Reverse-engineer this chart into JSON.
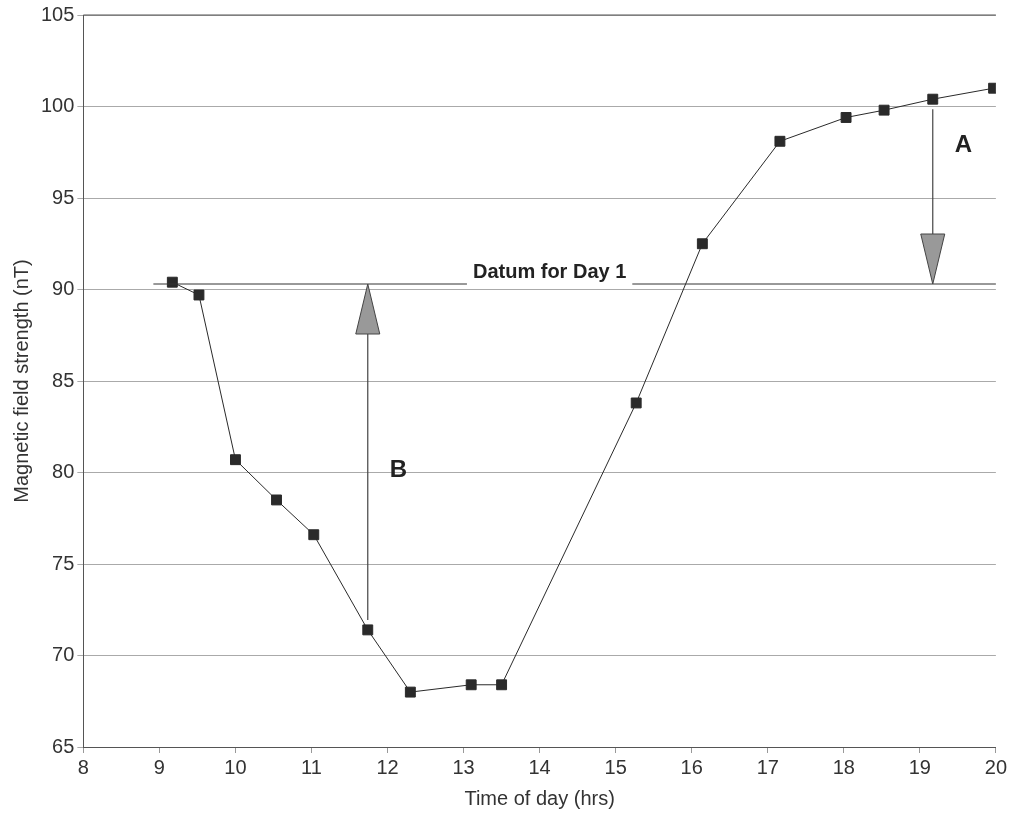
{
  "chart_data": {
    "type": "line",
    "xlabel": "Time of day (hrs)",
    "ylabel": "Magnetic field strength (nT)",
    "x": [
      9.17,
      9.52,
      10.0,
      10.54,
      11.03,
      11.74,
      12.3,
      13.1,
      13.5,
      15.27,
      16.14,
      17.16,
      18.03,
      18.53,
      19.17,
      19.97
    ],
    "series": [
      {
        "color": "#2a2a2a",
        "values": [
          90.4,
          89.7,
          80.7,
          78.5,
          76.6,
          71.4,
          68.0,
          68.4,
          68.4,
          83.8,
          92.5,
          98.1,
          99.4,
          99.8,
          100.4,
          101.0
        ]
      }
    ],
    "xlim": [
      8,
      20
    ],
    "xticks": [
      8,
      9,
      10,
      11,
      12,
      13,
      14,
      15,
      16,
      17,
      18,
      19,
      20
    ],
    "ylim": [
      65,
      105
    ],
    "yticks": [
      65,
      70,
      75,
      80,
      85,
      90,
      95,
      100,
      105
    ],
    "grid": "y",
    "marker": "square",
    "legend": false,
    "ref_lines": [
      {
        "axis": "y",
        "value": 90.3,
        "label": "Datum for Day 1",
        "color": "#333333"
      }
    ],
    "annotations": [
      "A",
      "B"
    ]
  }
}
